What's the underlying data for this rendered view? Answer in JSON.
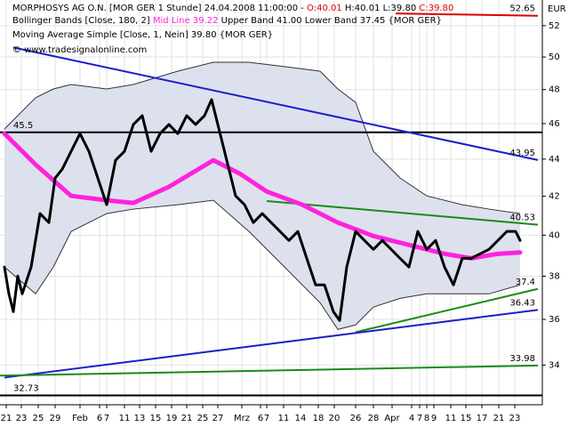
{
  "header": {
    "line1": [
      "MORPHOSYS AG O.N. [MOR GER  1 Stunde] 24.04.2008 11:00:00 - ",
      "O:40.01",
      " H:40.01 L:39.80 ",
      "C:39.80"
    ],
    "line2": [
      "Bollinger Bands [Close, 180, 2] ",
      "Mid Line 39.22",
      " Upper Band 41.00 Lower Band 37.45 {MOR GER}"
    ],
    "line3": "Moving Average Simple [Close, 1, Nein] 39.80 {MOR GER}",
    "copyright": "© www.tradesignalonline.com"
  },
  "chart_data": {
    "type": "line",
    "y_scale": "log",
    "y_axis_side": "right",
    "unit": "EUR",
    "grid": true,
    "xlim": [
      0,
      122
    ],
    "ylim": [
      32.35,
      53.7
    ],
    "yticks": [
      34,
      36,
      38,
      40,
      42,
      44,
      46,
      48,
      50,
      52
    ],
    "xticks": [
      {
        "value": 1.4,
        "label": "21"
      },
      {
        "value": 4.8,
        "label": "23"
      },
      {
        "value": 8.6,
        "label": "25"
      },
      {
        "value": 12.4,
        "label": "29"
      },
      {
        "value": 18,
        "label": "Feb"
      },
      {
        "value": 22.4,
        "label": "6"
      },
      {
        "value": 24,
        "label": "7"
      },
      {
        "value": 28,
        "label": "11"
      },
      {
        "value": 31.4,
        "label": "13"
      },
      {
        "value": 35,
        "label": "15"
      },
      {
        "value": 38.6,
        "label": "19"
      },
      {
        "value": 42,
        "label": "21"
      },
      {
        "value": 45.6,
        "label": "25"
      },
      {
        "value": 49,
        "label": "27"
      },
      {
        "value": 54.4,
        "label": "Mrz"
      },
      {
        "value": 58.6,
        "label": "6"
      },
      {
        "value": 60,
        "label": "7"
      },
      {
        "value": 63.8,
        "label": "11"
      },
      {
        "value": 67.6,
        "label": "14"
      },
      {
        "value": 71.6,
        "label": "18"
      },
      {
        "value": 75.2,
        "label": "20"
      },
      {
        "value": 80,
        "label": "26"
      },
      {
        "value": 84,
        "label": "28"
      },
      {
        "value": 88.2,
        "label": "Apr"
      },
      {
        "value": 92.6,
        "label": "4"
      },
      {
        "value": 94.4,
        "label": "7"
      },
      {
        "value": 96,
        "label": "8"
      },
      {
        "value": 97.6,
        "label": "9"
      },
      {
        "value": 101.4,
        "label": "11"
      },
      {
        "value": 104.8,
        "label": "15"
      },
      {
        "value": 108.4,
        "label": "17"
      },
      {
        "value": 112.2,
        "label": "21"
      },
      {
        "value": 115.8,
        "label": "23"
      }
    ],
    "band": {
      "color": "#dde1ee",
      "x": [
        1,
        8,
        12,
        16,
        24,
        30,
        40,
        48,
        56,
        64,
        72,
        76,
        80,
        84,
        90,
        96,
        104,
        110,
        117
      ],
      "upper": [
        45.69,
        47.51,
        48.04,
        48.31,
        48.04,
        48.31,
        49.12,
        49.67,
        49.67,
        49.4,
        49.12,
        48.04,
        47.24,
        44.43,
        42.97,
        42.02,
        41.56,
        41.33,
        41.1
      ],
      "lower": [
        38.44,
        37.17,
        38.44,
        40.19,
        41.1,
        41.33,
        41.56,
        41.79,
        40.19,
        38.44,
        36.76,
        35.55,
        35.75,
        36.56,
        36.96,
        37.17,
        37.17,
        37.17,
        37.59
      ]
    },
    "series": [
      {
        "color": "#ff22dd",
        "width": 5,
        "x": [
          1,
          8,
          16,
          24,
          30,
          38,
          48,
          54,
          60,
          68,
          76,
          84,
          92,
          100,
          106,
          112,
          117
        ],
        "values": [
          45.43,
          43.7,
          42.02,
          41.79,
          41.65,
          42.5,
          43.94,
          43.2,
          42.25,
          41.56,
          40.64,
          39.96,
          39.52,
          39.08,
          38.86,
          39.08,
          39.15
        ]
      },
      {
        "color": "#000000",
        "width": 3,
        "x": [
          1,
          2,
          3,
          4,
          5,
          7,
          9,
          11,
          12.4,
          14,
          16,
          18,
          20,
          22,
          24,
          26,
          28,
          30,
          32,
          34,
          36,
          38,
          40,
          42,
          44,
          46,
          47.6,
          49,
          51,
          53,
          55,
          57,
          59,
          61,
          63,
          65,
          67,
          69,
          71,
          73,
          75,
          76.4,
          78,
          80,
          82,
          84,
          86,
          88,
          90,
          92,
          94,
          96,
          98,
          100,
          102,
          104,
          106,
          108,
          110,
          112,
          114,
          116,
          117
        ],
        "values": [
          38.44,
          37.17,
          36.35,
          38.01,
          37.17,
          38.44,
          41.1,
          40.64,
          42.97,
          43.45,
          44.43,
          45.43,
          44.43,
          42.97,
          41.56,
          43.94,
          44.43,
          45.95,
          46.46,
          44.43,
          45.43,
          45.95,
          45.43,
          46.46,
          45.95,
          46.46,
          47.4,
          45.95,
          43.94,
          42.02,
          41.56,
          40.64,
          41.1,
          40.64,
          40.19,
          39.74,
          40.19,
          38.86,
          37.59,
          37.59,
          36.35,
          35.95,
          38.44,
          40.19,
          39.74,
          39.3,
          39.74,
          39.3,
          38.86,
          38.44,
          40.19,
          39.3,
          39.74,
          38.44,
          37.59,
          38.86,
          38.86,
          39.08,
          39.3,
          39.74,
          40.19,
          40.19,
          39.74
        ]
      }
    ],
    "lines": [
      {
        "color": "#dd0000",
        "label_side": "right",
        "x": [
          89,
          121
        ],
        "values": [
          52.8,
          52.65
        ]
      },
      {
        "color": "#000000",
        "label_side": "left",
        "x": [
          0,
          122
        ],
        "values": [
          45.5,
          45.5
        ]
      },
      {
        "color": "#1c1ccc",
        "label_side": "right",
        "x": [
          3,
          121
        ],
        "values": [
          50.6,
          43.95
        ]
      },
      {
        "color": "#1a8a1a",
        "label_side": "right",
        "x": [
          60,
          121
        ],
        "values": [
          41.75,
          40.53
        ]
      },
      {
        "color": "#1a8a1a",
        "label_side": "right",
        "x": [
          80,
          121
        ],
        "values": [
          35.43,
          37.4
        ]
      },
      {
        "color": "#1c1ccc",
        "label_side": "right",
        "x": [
          1,
          121
        ],
        "values": [
          33.47,
          36.43
        ]
      },
      {
        "color": "#1a8a1a",
        "label_side": "right",
        "x": [
          0,
          121
        ],
        "values": [
          33.55,
          33.98
        ]
      },
      {
        "color": "#000000",
        "label_side": "left",
        "x": [
          0,
          122
        ],
        "values": [
          32.73,
          32.73
        ]
      }
    ]
  }
}
